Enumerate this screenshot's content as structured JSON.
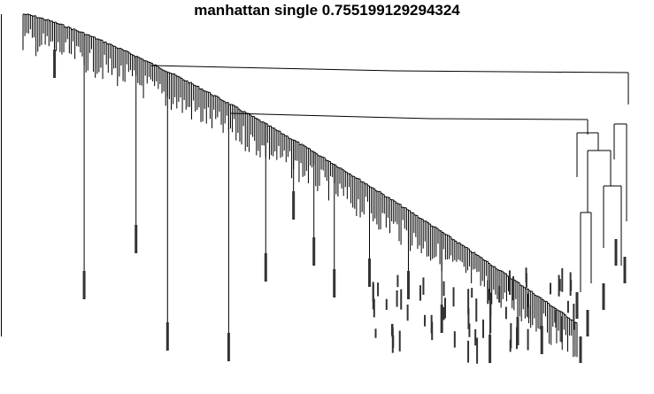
{
  "title": "manhattan single 0.755199129294324",
  "chart_data": {
    "type": "dendrogram",
    "title": "manhattan single 0.755199129294324",
    "metric": "manhattan",
    "linkage": "single",
    "score": 0.755199129294324,
    "orientation": "top-down",
    "leaf_count_estimate": 300,
    "xlabel": "",
    "ylabel": "",
    "line_color": "#000000",
    "background": "#ffffff"
  }
}
